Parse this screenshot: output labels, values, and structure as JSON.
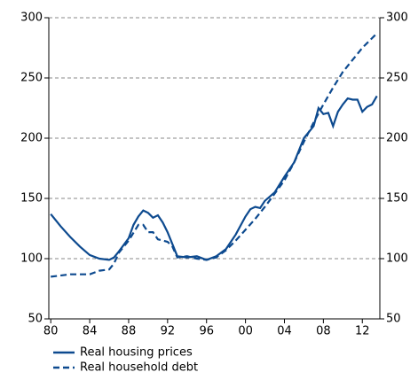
{
  "chart_data": {
    "type": "line",
    "x_format": "two-digit year",
    "xlim": [
      1979.8,
      2013.8
    ],
    "xticks": [
      {
        "value": 1980,
        "label": "80"
      },
      {
        "value": 1984,
        "label": "84"
      },
      {
        "value": 1988,
        "label": "88"
      },
      {
        "value": 1992,
        "label": "92"
      },
      {
        "value": 1996,
        "label": "96"
      },
      {
        "value": 2000,
        "label": "00"
      },
      {
        "value": 2004,
        "label": "04"
      },
      {
        "value": 2008,
        "label": "08"
      },
      {
        "value": 2012,
        "label": "12"
      }
    ],
    "ylim": [
      50,
      300
    ],
    "yticks": [
      50,
      100,
      150,
      200,
      250,
      300
    ],
    "y2lim": [
      50,
      300
    ],
    "y2ticks": [
      50,
      100,
      150,
      200,
      250,
      300
    ],
    "grid": true,
    "legend": "bottom",
    "series": [
      {
        "name": "Real housing prices",
        "color": "#0d4a8f",
        "dash": "solid",
        "x": [
          1980,
          1981,
          1982,
          1983,
          1984,
          1985,
          1986,
          1986.5,
          1987,
          1988,
          1988.5,
          1989,
          1989.5,
          1990,
          1990.5,
          1991,
          1991.5,
          1992,
          1992.5,
          1993,
          1994,
          1995,
          1996,
          1997,
          1998,
          1999,
          2000,
          2000.5,
          2001,
          2001.5,
          2002,
          2003,
          2004,
          2005,
          2006,
          2007,
          2007.5,
          2008,
          2008.5,
          2009,
          2009.5,
          2010,
          2010.5,
          2011,
          2011.5,
          2012,
          2012.5,
          2013,
          2013.5
        ],
        "values": [
          137,
          127,
          118,
          110,
          103,
          100,
          99,
          101,
          106,
          117,
          128,
          135,
          140,
          138,
          134,
          136,
          130,
          122,
          112,
          102,
          101,
          102,
          99,
          102,
          108,
          120,
          135,
          141,
          143,
          142,
          148,
          155,
          168,
          180,
          200,
          210,
          225,
          220,
          221,
          210,
          222,
          228,
          233,
          232,
          232,
          222,
          226,
          228,
          235
        ]
      },
      {
        "name": "Real household debt",
        "color": "#0d4a8f",
        "dash": "dashed",
        "x": [
          1980,
          1982,
          1983,
          1984,
          1985,
          1986,
          1986.5,
          1987,
          1988,
          1989,
          1989.5,
          1990,
          1990.5,
          1991,
          1992,
          1992.5,
          1993,
          1994,
          1995,
          1996,
          1997,
          1998,
          1999,
          2000,
          2001,
          2002,
          2003,
          2004,
          2005,
          2006,
          2007,
          2008,
          2009,
          2010,
          2011,
          2012,
          2013,
          2013.5
        ],
        "values": [
          85,
          87,
          87,
          87,
          90,
          91,
          96,
          105,
          115,
          128,
          128,
          122,
          122,
          116,
          114,
          110,
          101,
          102,
          100,
          99,
          101,
          107,
          115,
          124,
          133,
          143,
          154,
          165,
          180,
          197,
          213,
          228,
          242,
          255,
          265,
          275,
          283,
          287
        ]
      }
    ]
  }
}
